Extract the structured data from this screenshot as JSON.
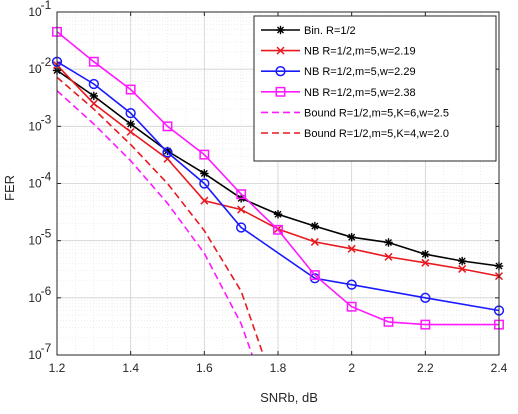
{
  "chart_data": {
    "type": "line",
    "title": "",
    "xlabel": "SNRb, dB",
    "ylabel": "FER",
    "xlim": [
      1.2,
      2.4
    ],
    "ylim": [
      1e-07,
      0.1
    ],
    "yscale": "log",
    "grid": true,
    "minor_grid": true,
    "legend_position": "top-right",
    "x_ticks": [
      1.2,
      1.4,
      1.6,
      1.8,
      2,
      2.2,
      2.4
    ],
    "x_tick_labels": [
      "1.2",
      "1.4",
      "1.6",
      "1.8",
      "2",
      "2.2",
      "2.4"
    ],
    "y_tick_exponents": [
      -1,
      -2,
      -3,
      -4,
      -5,
      -6,
      -7
    ],
    "y_tick_base": "10",
    "series": [
      {
        "name": "Bin. R=1/2",
        "color": "#000000",
        "marker": "asterisk",
        "dash": "solid",
        "x": [
          1.2,
          1.3,
          1.4,
          1.5,
          1.6,
          1.7,
          1.8,
          1.9,
          2.0,
          2.1,
          2.2,
          2.3,
          2.4
        ],
        "y": [
          0.0095,
          0.0034,
          0.0011,
          0.00037,
          0.00015,
          5.5e-05,
          2.9e-05,
          1.8e-05,
          1.15e-05,
          9.3e-06,
          5.8e-06,
          4.4e-06,
          3.6e-06
        ]
      },
      {
        "name": "NB R=1/2,m=5,w=2.19",
        "color": "#e8191f",
        "marker": "x",
        "dash": "solid",
        "x": [
          1.2,
          1.3,
          1.4,
          1.5,
          1.6,
          1.7,
          1.8,
          1.9,
          2.0,
          2.1,
          2.2,
          2.3,
          2.4
        ],
        "y": [
          0.0118,
          0.0025,
          0.0008,
          0.00027,
          5e-05,
          3.5e-05,
          1.6e-05,
          9.5e-06,
          7.2e-06,
          5.2e-06,
          4.1e-06,
          3.2e-06,
          2.4e-06
        ]
      },
      {
        "name": "NB R=1/2,m=5,w=2.29",
        "color": "#1a1aff",
        "marker": "circle",
        "dash": "solid",
        "x": [
          1.2,
          1.3,
          1.4,
          1.5,
          1.6,
          1.7,
          1.9,
          2.0,
          2.2,
          2.4
        ],
        "y": [
          0.0135,
          0.0055,
          0.0017,
          0.00035,
          0.0001,
          1.7e-05,
          2.2e-06,
          1.7e-06,
          1e-06,
          6e-07
        ]
      },
      {
        "name": "NB R=1/2,m=5,w=2.38",
        "color": "#ff19ff",
        "marker": "square",
        "dash": "solid",
        "x": [
          1.2,
          1.3,
          1.4,
          1.5,
          1.6,
          1.7,
          1.8,
          1.9,
          2.0,
          2.1,
          2.2,
          2.4
        ],
        "y": [
          0.045,
          0.0135,
          0.0044,
          0.001,
          0.00032,
          6.5e-05,
          1.55e-05,
          2.5e-06,
          7e-07,
          3.8e-07,
          3.4e-07,
          3.4e-07
        ]
      },
      {
        "name": "Bound R=1/2,m=5,K=6,w=2.5",
        "color": "#ff19ff",
        "marker": "none",
        "dash": "dashed",
        "x": [
          1.2,
          1.3,
          1.4,
          1.5,
          1.6,
          1.7,
          1.73
        ],
        "y": [
          0.0042,
          0.0011,
          0.00025,
          4.5e-05,
          6e-06,
          3.5e-07,
          1e-07
        ]
      },
      {
        "name": "Bound R=1/2,m=5,K=4,w=2.0",
        "color": "#e8191f",
        "marker": "none",
        "dash": "dashed",
        "x": [
          1.2,
          1.3,
          1.4,
          1.5,
          1.6,
          1.7,
          1.76
        ],
        "y": [
          0.0072,
          0.002,
          0.00048,
          0.0001,
          1.5e-05,
          1.3e-06,
          1e-07
        ]
      }
    ]
  }
}
